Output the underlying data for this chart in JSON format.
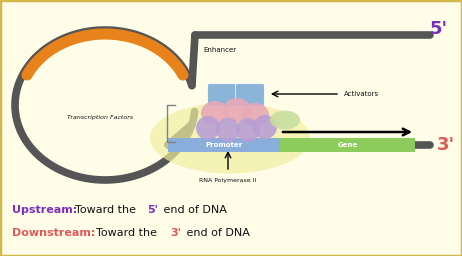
{
  "bg_color": "#fffde7",
  "border_color": "#d4b84a",
  "fig_width": 4.62,
  "fig_height": 2.56,
  "dpi": 100,
  "five_prime_label": "5'",
  "three_prime_label": "3'",
  "five_prime_color": "#7b2fbe",
  "three_prime_color": "#e05a5a",
  "dna_color": "#555555",
  "enhancer_color": "#e8821a",
  "promoter_color": "#8aaedb",
  "gene_color": "#8dcc5c",
  "promoter_label": "Promoter",
  "gene_label": "Gene",
  "enhancer_label": "Enhancer",
  "activators_label": "Activators",
  "tf_label": "Transcription Factors",
  "rna_pol_label": "RNA Polymerase II",
  "upstream_color": "#7b2fbe",
  "downstream_color": "#e05a5a",
  "text_color": "#111111",
  "activator_color": "#8ab4d8",
  "pink_blob_color": "#e8a8b8",
  "purple_blob_color": "#b89fd4",
  "green_blob_color": "#c8dfa0",
  "yellow_glow_color": "#f0eea0"
}
